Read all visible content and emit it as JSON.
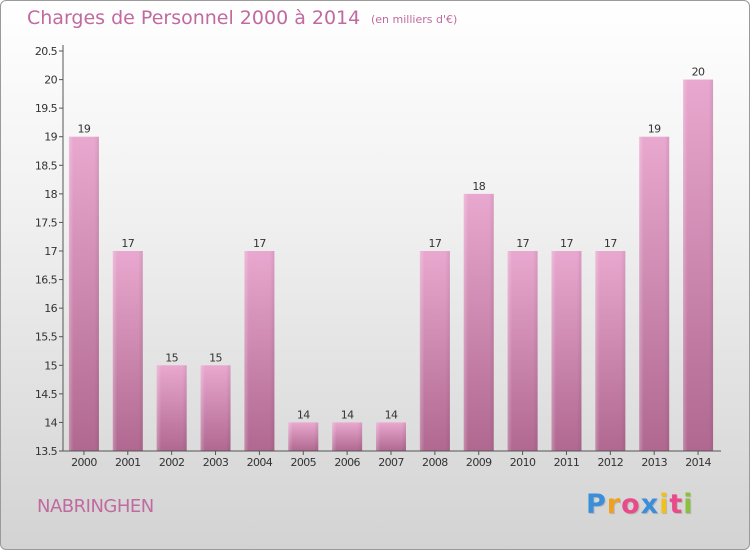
{
  "chart_data": {
    "type": "bar",
    "title": "Charges de Personnel 2000 à 2014",
    "subtitle": "(en milliers d'€)",
    "categories": [
      "2000",
      "2001",
      "2002",
      "2003",
      "2004",
      "2005",
      "2006",
      "2007",
      "2008",
      "2009",
      "2010",
      "2011",
      "2012",
      "2013",
      "2014"
    ],
    "values": [
      19,
      17,
      15,
      15,
      17,
      14,
      14,
      14,
      17,
      18,
      17,
      17,
      17,
      19,
      20
    ],
    "data_labels": [
      "19",
      "17",
      "15",
      "15",
      "17",
      "14",
      "14",
      "14",
      "17",
      "18",
      "17",
      "17",
      "17",
      "19",
      "20"
    ],
    "ylim": [
      13.5,
      20.5
    ],
    "yticks": [
      13.5,
      14,
      14.5,
      15,
      15.5,
      16,
      16.5,
      17,
      17.5,
      18,
      18.5,
      19,
      19.5,
      20,
      20.5
    ],
    "ytick_labels": [
      "13.5",
      "14",
      "14.5",
      "15",
      "15.5",
      "16",
      "16.5",
      "17",
      "17.5",
      "18",
      "18.5",
      "19",
      "19.5",
      "20",
      "20.5"
    ],
    "xlabel": "",
    "ylabel": "",
    "grid": false,
    "legend": "none",
    "bar_colors": [
      "#e9a8cf",
      "#b06890"
    ]
  },
  "commune": "NABRINGHEN",
  "logo": {
    "text": "Proxiti",
    "letters": [
      {
        "char": "P",
        "color": "#3a8fd8"
      },
      {
        "char": "r",
        "color": "#f0a020"
      },
      {
        "char": "o",
        "color": "#e84a8a"
      },
      {
        "char": "x",
        "color": "#3a8fd8"
      },
      {
        "char": "i",
        "color": "#f0c020"
      },
      {
        "char": "t",
        "color": "#e84a8a"
      },
      {
        "char": "i",
        "color": "#8ac040"
      }
    ]
  },
  "colors": {
    "title": "#c06aa0",
    "axis": "#555555",
    "text": "#333333"
  }
}
